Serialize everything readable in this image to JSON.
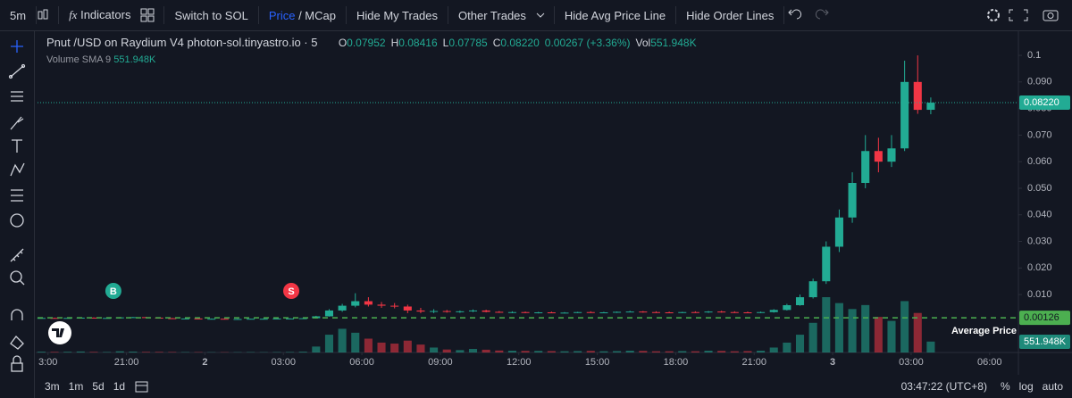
{
  "toolbar": {
    "items": [
      "5m",
      "Indicators",
      "Switch to SOL",
      "Price",
      "/ MCap",
      "Hide My Trades",
      "Other Trades",
      "Hide Avg Price Line",
      "Hide Order Lines"
    ]
  },
  "chart_data": {
    "type": "candlestick",
    "title": "Pnut /USD on Raydium V4 photon-sol.tinyastro.io · 5",
    "ohlc_legend": [
      {
        "key": "O",
        "value": "0.07952"
      },
      {
        "key": "H",
        "value": "0.08416"
      },
      {
        "key": "L",
        "value": "0.07785"
      },
      {
        "key": "C",
        "value": "0.08220"
      }
    ],
    "change": "0.00267 (+3.36%)",
    "vol_key": "Vol",
    "volume_legend": [
      "Volume",
      "SMA 9"
    ],
    "x": [
      17.75,
      18.25,
      18.75,
      19.25,
      19.75,
      20.25,
      20.75,
      21.25,
      21.75,
      22.25,
      22.75,
      23.25,
      23.75,
      24.25,
      24.75,
      25.25,
      25.75,
      26.25,
      26.75,
      27.25,
      27.75,
      28.25,
      28.75,
      29.25,
      29.75,
      30.25,
      30.75,
      31.25,
      31.75,
      32.25,
      32.75,
      33.25,
      33.75,
      34.25,
      34.75,
      35.25,
      35.75,
      36.25,
      36.75,
      37.25,
      37.75,
      38.25,
      38.75,
      39.25,
      39.75,
      40.25,
      40.75,
      41.25,
      41.75,
      42.25,
      42.75,
      43.25,
      43.75,
      44.25,
      44.75,
      45.25,
      45.75,
      46.25,
      46.75,
      47.25,
      47.75,
      48.25,
      48.75,
      49.25,
      49.75,
      50.25,
      50.75,
      51.25,
      51.75
    ],
    "open": [
      0.0012,
      0.0012,
      0.0011,
      0.0012,
      0.0013,
      0.0012,
      0.0012,
      0.0014,
      0.0015,
      0.0013,
      0.0011,
      0.001,
      0.001,
      0.0009,
      0.0009,
      0.0008,
      0.0008,
      0.0009,
      0.0009,
      0.001,
      0.001,
      0.0011,
      0.0018,
      0.004,
      0.0058,
      0.0075,
      0.0062,
      0.0058,
      0.0055,
      0.004,
      0.0036,
      0.0038,
      0.0035,
      0.0037,
      0.004,
      0.0035,
      0.0033,
      0.0034,
      0.0032,
      0.0033,
      0.0031,
      0.0032,
      0.0034,
      0.0032,
      0.0033,
      0.0035,
      0.0036,
      0.0034,
      0.0033,
      0.0032,
      0.0034,
      0.0033,
      0.0036,
      0.0034,
      0.0033,
      0.0032,
      0.0034,
      0.0042,
      0.006,
      0.009,
      0.015,
      0.028,
      0.039,
      0.052,
      0.064,
      0.06,
      0.065,
      0.09,
      0.07952
    ],
    "high": [
      0.0013,
      0.0013,
      0.0012,
      0.0014,
      0.0014,
      0.0013,
      0.0015,
      0.0016,
      0.0016,
      0.0014,
      0.0012,
      0.0011,
      0.0011,
      0.001,
      0.001,
      0.0009,
      0.0009,
      0.001,
      0.001,
      0.0011,
      0.0012,
      0.002,
      0.0045,
      0.0065,
      0.0105,
      0.009,
      0.0072,
      0.0068,
      0.0062,
      0.005,
      0.0045,
      0.0042,
      0.004,
      0.0044,
      0.0043,
      0.0038,
      0.0037,
      0.0036,
      0.0035,
      0.0036,
      0.0034,
      0.0035,
      0.0037,
      0.0035,
      0.0036,
      0.0039,
      0.0038,
      0.0037,
      0.0036,
      0.0035,
      0.0037,
      0.0038,
      0.0039,
      0.0037,
      0.0036,
      0.0036,
      0.0045,
      0.0065,
      0.01,
      0.016,
      0.03,
      0.042,
      0.056,
      0.07,
      0.069,
      0.07,
      0.098,
      0.1,
      0.08416
    ],
    "low": [
      0.0011,
      0.0011,
      0.001,
      0.0011,
      0.0012,
      0.0011,
      0.0012,
      0.0013,
      0.0013,
      0.0011,
      0.0009,
      0.0009,
      0.0008,
      0.0008,
      0.0008,
      0.0007,
      0.0007,
      0.0008,
      0.0008,
      0.0009,
      0.0009,
      0.001,
      0.0017,
      0.0035,
      0.0052,
      0.0055,
      0.005,
      0.0048,
      0.003,
      0.003,
      0.003,
      0.0032,
      0.0031,
      0.0034,
      0.0033,
      0.0031,
      0.003,
      0.003,
      0.0029,
      0.003,
      0.0029,
      0.003,
      0.0031,
      0.003,
      0.0031,
      0.0033,
      0.0032,
      0.0031,
      0.003,
      0.003,
      0.0031,
      0.0031,
      0.0032,
      0.0031,
      0.003,
      0.003,
      0.0032,
      0.004,
      0.0058,
      0.0085,
      0.014,
      0.026,
      0.037,
      0.05,
      0.056,
      0.058,
      0.064,
      0.078,
      0.07785
    ],
    "close": [
      0.0012,
      0.0011,
      0.0012,
      0.0013,
      0.0012,
      0.0012,
      0.0014,
      0.0015,
      0.0013,
      0.0011,
      0.001,
      0.001,
      0.0009,
      0.0009,
      0.0008,
      0.0008,
      0.0009,
      0.0009,
      0.001,
      0.001,
      0.0011,
      0.0018,
      0.004,
      0.0058,
      0.0075,
      0.0062,
      0.0058,
      0.0055,
      0.004,
      0.0036,
      0.0038,
      0.0035,
      0.0037,
      0.004,
      0.0035,
      0.0033,
      0.0034,
      0.0032,
      0.0033,
      0.0031,
      0.0032,
      0.0034,
      0.0032,
      0.0033,
      0.0035,
      0.0036,
      0.0034,
      0.0033,
      0.0032,
      0.0034,
      0.0033,
      0.0036,
      0.0034,
      0.0033,
      0.0032,
      0.0034,
      0.0042,
      0.006,
      0.009,
      0.015,
      0.028,
      0.039,
      0.052,
      0.064,
      0.06,
      0.065,
      0.09,
      0.0795,
      0.0822
    ],
    "volume": [
      40000,
      30000,
      35000,
      50000,
      30000,
      25000,
      60000,
      45000,
      30000,
      30000,
      25000,
      20000,
      20000,
      15000,
      15000,
      15000,
      20000,
      15000,
      20000,
      25000,
      40000,
      300000,
      900000,
      1200000,
      1000000,
      700000,
      500000,
      450000,
      600000,
      400000,
      250000,
      150000,
      120000,
      180000,
      140000,
      100000,
      90000,
      80000,
      80000,
      70000,
      60000,
      70000,
      80000,
      60000,
      70000,
      90000,
      80000,
      60000,
      60000,
      70000,
      60000,
      90000,
      80000,
      60000,
      70000,
      90000,
      250000,
      500000,
      900000,
      1500000,
      2800000,
      2500000,
      2200000,
      2400000,
      1800000,
      1600000,
      2600000,
      2000000,
      551948
    ],
    "up_color": "#22ab94",
    "down_color": "#f23645",
    "xlim": [
      17.6,
      55.1
    ],
    "xticks": [
      {
        "value": 18,
        "label": "3:00"
      },
      {
        "value": 21,
        "label": "21:00"
      },
      {
        "value": 24,
        "label": "2"
      },
      {
        "value": 27,
        "label": "03:00"
      },
      {
        "value": 30,
        "label": "06:00"
      },
      {
        "value": 33,
        "label": "09:00"
      },
      {
        "value": 36,
        "label": "12:00"
      },
      {
        "value": 39,
        "label": "15:00"
      },
      {
        "value": 42,
        "label": "18:00"
      },
      {
        "value": 45,
        "label": "21:00"
      },
      {
        "value": 48,
        "label": "3"
      },
      {
        "value": 51,
        "label": "03:00"
      },
      {
        "value": 54,
        "label": "06:00"
      }
    ],
    "ylim": [
      -0.0118,
      0.1074
    ],
    "yticks": [
      {
        "value": 0.01,
        "label": "0.010"
      },
      {
        "value": 0.02,
        "label": "0.020"
      },
      {
        "value": 0.03,
        "label": "0.030"
      },
      {
        "value": 0.04,
        "label": "0.040"
      },
      {
        "value": 0.05,
        "label": "0.050"
      },
      {
        "value": 0.06,
        "label": "0.060"
      },
      {
        "value": 0.07,
        "label": "0.070"
      },
      {
        "value": 0.08,
        "label": "0.080"
      },
      {
        "value": 0.09,
        "label": "0.090"
      },
      0.1
    ],
    "last_price": {
      "value": 0.0822,
      "label": "0.08220"
    },
    "average_price": {
      "value": 0.00126,
      "label": "0.00126",
      "name": "Average Price"
    },
    "last_volume": {
      "value": 551948,
      "label": "551.948K"
    },
    "trades": [
      {
        "x": 20.5,
        "label": "B",
        "color": "#22ab94"
      },
      {
        "x": 27.3,
        "label": "S",
        "color": "#f23645"
      }
    ]
  },
  "bottom_bar": {
    "ranges": [
      "3m",
      "1m",
      "5d",
      "1d"
    ],
    "clock": "03:47:22 (UTC+8)",
    "options": [
      "%",
      "log",
      "auto"
    ]
  }
}
